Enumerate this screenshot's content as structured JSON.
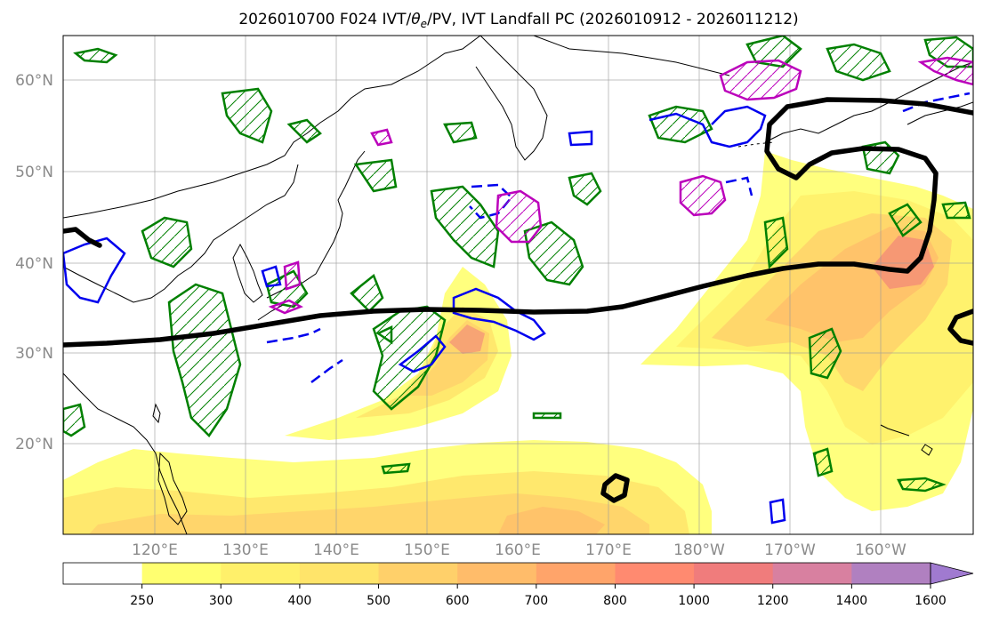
{
  "title": {
    "prefix": "2026010700 F024 IVT/",
    "theta": "θ",
    "theta_sub": "e",
    "suffix": "/PV, IVT Landfall PC (2026010912 - 2026011212)"
  },
  "map": {
    "lat_labels": [
      "60°N",
      "50°N",
      "40°N",
      "30°N",
      "20°N"
    ],
    "lon_labels": [
      "120°E",
      "130°E",
      "140°E",
      "150°E",
      "160°E",
      "170°E",
      "180°W",
      "170°W",
      "160°W"
    ],
    "colors": {
      "coast": "#000000",
      "theta_e_line": "#000000",
      "pv_green": "#008000",
      "pv_blue": "#0000ee",
      "pv_magenta": "#bb00bb",
      "grid": "#999999"
    }
  },
  "colorbar": {
    "labels": [
      "250",
      "300",
      "400",
      "500",
      "600",
      "700",
      "800",
      "1000",
      "1200",
      "1400",
      "1600"
    ],
    "colors": [
      "#ffffff",
      "#ffff70",
      "#fff06a",
      "#ffe46a",
      "#ffd06a",
      "#ffbc6a",
      "#ffa46a",
      "#ff8a70",
      "#f07c7c",
      "#d880a0",
      "#b080c0",
      "#a07ad0"
    ]
  }
}
